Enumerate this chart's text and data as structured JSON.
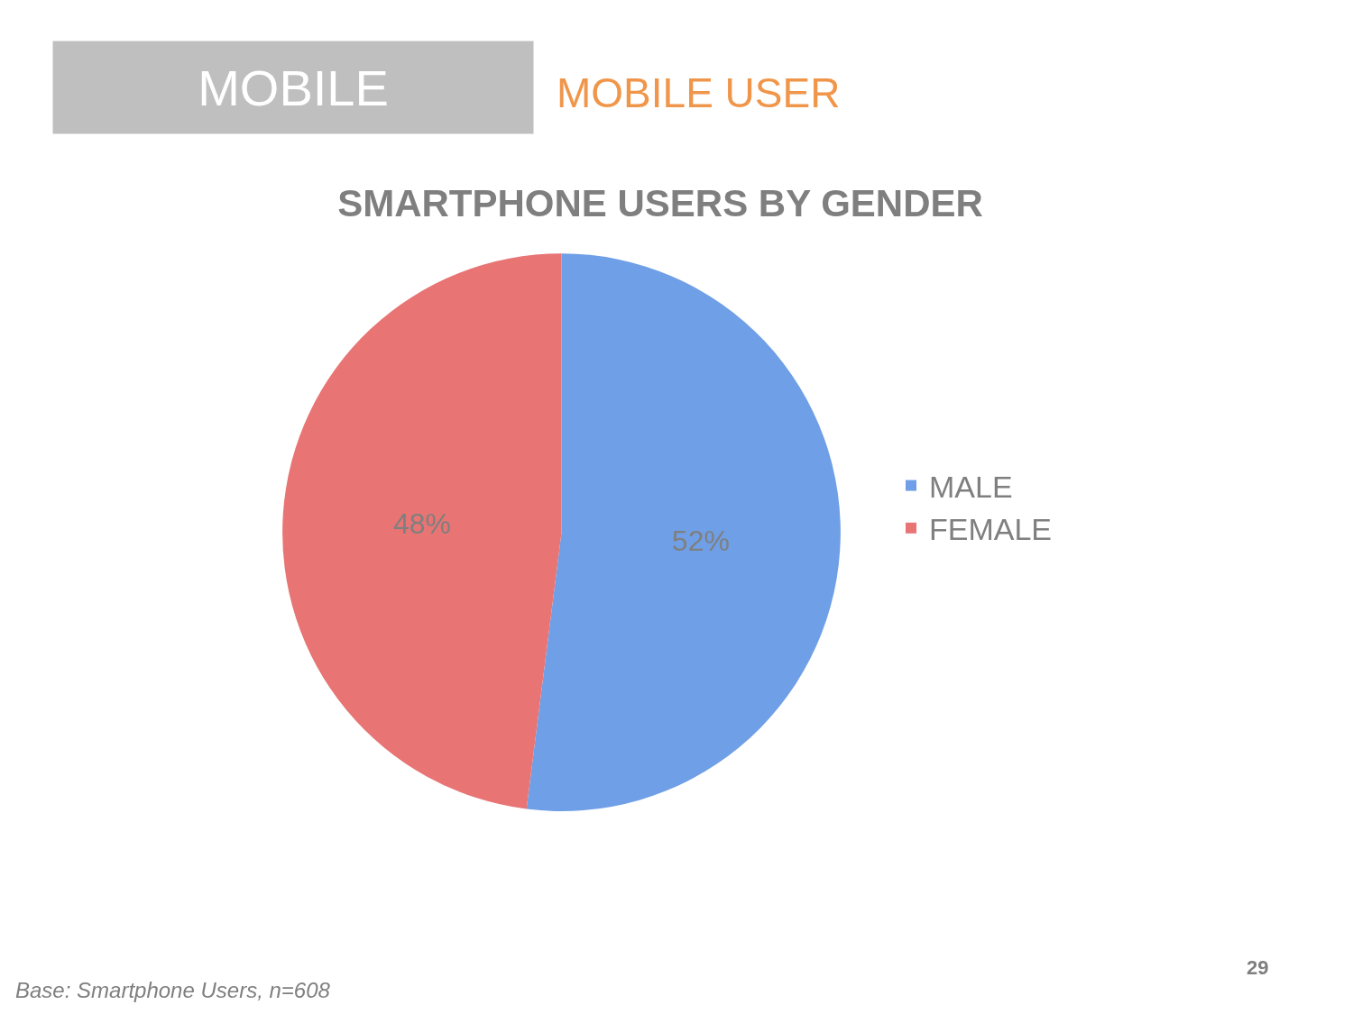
{
  "chart_data": {
    "type": "pie",
    "title": "SMARTPHONE USERS BY GENDER",
    "categories": [
      "MALE",
      "FEMALE"
    ],
    "values": [
      52,
      48
    ],
    "value_labels": [
      "52%",
      "48%"
    ],
    "colors": [
      "#6f9fe6",
      "#e87474"
    ],
    "legend": "right",
    "annotations": [
      "MOBILE",
      "MOBILE USER",
      "Base: Smartphone Users, n=608",
      "29"
    ]
  }
}
